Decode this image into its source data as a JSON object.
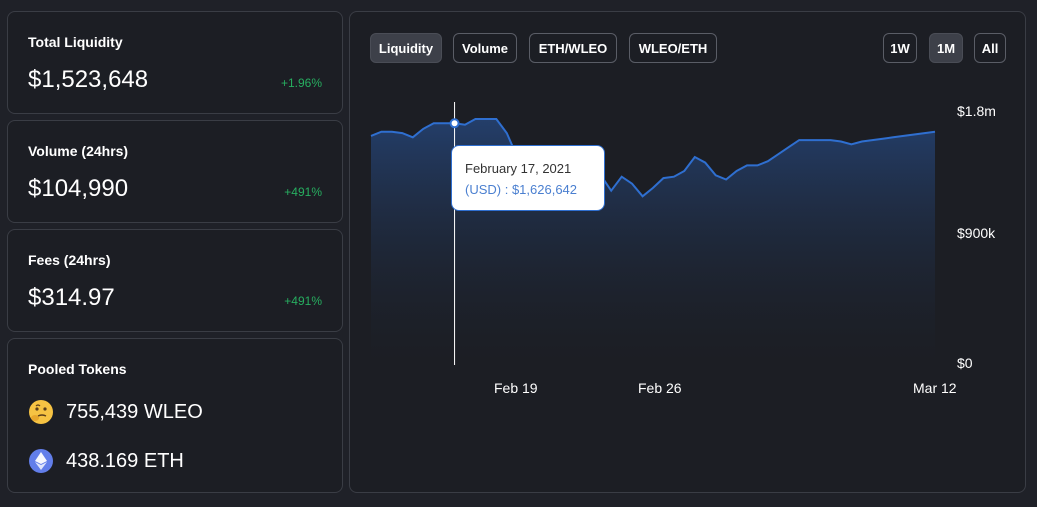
{
  "stats": [
    {
      "title": "Total Liquidity",
      "value": "$1,523,648",
      "change": "+1.96%"
    },
    {
      "title": "Volume (24hrs)",
      "value": "$104,990",
      "change": "+491%"
    },
    {
      "title": "Fees (24hrs)",
      "value": "$314.97",
      "change": "+491%"
    }
  ],
  "pooled": {
    "title": "Pooled Tokens",
    "tokens": [
      {
        "amount": "755,439 WLEO",
        "icon": "thinking-face-icon"
      },
      {
        "amount": "438.169 ETH",
        "icon": "ethereum-icon"
      }
    ]
  },
  "tabs": {
    "liquidity": "Liquidity",
    "volume": "Volume",
    "eth_wleo": "ETH/WLEO",
    "wleo_eth": "WLEO/ETH"
  },
  "ranges": {
    "w1": "1W",
    "m1": "1M",
    "all": "All"
  },
  "tooltip": {
    "date": "February 17, 2021",
    "value": "(USD) : $1,626,642"
  },
  "colors": {
    "line": "#2f6fd0",
    "positive": "#27ae60",
    "card_border": "#3a3d45"
  },
  "chart_data": {
    "type": "area",
    "title": "",
    "xlabel": "",
    "ylabel": "",
    "y_tick_labels": [
      "$1.8m",
      "$900k",
      "$0"
    ],
    "y_ticks": [
      1800000,
      900000,
      0
    ],
    "x_tick_labels": [
      "Feb 19",
      "Feb 26",
      "Mar 12"
    ],
    "x_ticks": [
      4,
      11,
      25
    ],
    "ylim": [
      0,
      1800000
    ],
    "xlim": [
      0,
      27
    ],
    "series": [
      {
        "x": [
          0,
          0.5,
          1,
          1.5,
          2,
          2.5,
          3,
          3.5,
          4,
          4.5,
          5,
          5.5,
          6,
          6.5,
          7,
          7.5,
          8,
          8.5,
          9,
          9.5,
          10,
          10.5,
          11,
          11.5,
          12,
          12.5,
          13,
          13.5,
          14,
          14.5,
          15,
          15.5,
          16,
          16.5,
          17,
          17.5,
          18,
          18.5,
          19,
          19.5,
          20,
          20.5,
          21,
          21.5,
          22,
          22.5,
          23,
          23.5,
          24,
          24.5,
          25,
          25.5,
          26,
          26.5,
          27
        ],
        "values": [
          1630000,
          1660000,
          1660000,
          1650000,
          1620000,
          1680000,
          1720000,
          1720000,
          1720000,
          1710000,
          1750000,
          1750000,
          1750000,
          1650000,
          1480000,
          1380000,
          1350000,
          1390000,
          1340000,
          1380000,
          1350000,
          1280000,
          1350000,
          1240000,
          1340000,
          1290000,
          1200000,
          1260000,
          1330000,
          1340000,
          1380000,
          1480000,
          1440000,
          1350000,
          1320000,
          1380000,
          1420000,
          1420000,
          1450000,
          1500000,
          1550000,
          1600000,
          1600000,
          1600000,
          1600000,
          1590000,
          1570000,
          1590000,
          1600000,
          1610000,
          1620000,
          1630000,
          1640000,
          1650000,
          1660000
        ]
      }
    ],
    "hover_x": 4
  }
}
